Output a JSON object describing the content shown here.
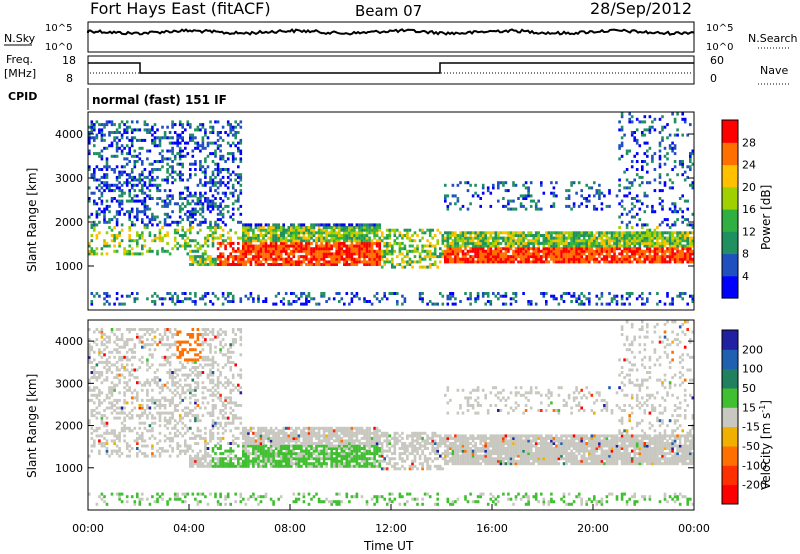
{
  "header": {
    "station": "Fort Hays East (fitACF)",
    "beam": "Beam 07",
    "date": "28/Sep/2012"
  },
  "nsky_panel": {
    "left_label": "N.Sky",
    "left_ticks": [
      "10^5",
      "10^0"
    ],
    "right_ticks": [
      "10^5",
      "10^0"
    ],
    "right_label": "N.Search"
  },
  "freq_panel": {
    "left_label_1": "Freq.",
    "left_label_2": "[MHz]",
    "left_ticks": [
      "18",
      "8"
    ],
    "right_ticks": [
      "60",
      "0"
    ],
    "right_label": "Nave",
    "cpid_label": "CPID",
    "cpid_value": "normal (fast) 151 IF"
  },
  "chart_data": [
    {
      "type": "heatmap",
      "name": "power-panel",
      "xlabel": "",
      "ylabel": "Slant Range [km]",
      "xlim": [
        0,
        24
      ],
      "ylim": [
        0,
        4500
      ],
      "yticks": [
        "1000",
        "2000",
        "3000",
        "4000"
      ],
      "colorbar": {
        "label": "Power [dB]",
        "ticks": [
          "4",
          "8",
          "12",
          "16",
          "20",
          "24",
          "28"
        ],
        "colors": [
          "#0000ff",
          "#2050c0",
          "#209060",
          "#30b040",
          "#a0d000",
          "#ffc000",
          "#ff7000",
          "#ff0000"
        ]
      }
    },
    {
      "type": "heatmap",
      "name": "velocity-panel",
      "xlabel": "Time UT",
      "ylabel": "Slant Range [km]",
      "xlim": [
        0,
        24
      ],
      "ylim": [
        0,
        4500
      ],
      "yticks": [
        "1000",
        "2000",
        "3000",
        "4000"
      ],
      "xticks": [
        "00:00",
        "04:00",
        "08:00",
        "12:00",
        "16:00",
        "20:00",
        "00:00"
      ],
      "colorbar": {
        "label": "Velocity [m s",
        "label_sup": "-1",
        "label_end": "]",
        "ticks": [
          "200",
          "100",
          "50",
          "15",
          "-15",
          "-50",
          "-100",
          "-200"
        ],
        "colors": [
          "#2020a0",
          "#2060b0",
          "#208060",
          "#40c030",
          "#c8c8c0",
          "#f0b000",
          "#ff7000",
          "#ff3000",
          "#ff0000"
        ]
      }
    }
  ]
}
